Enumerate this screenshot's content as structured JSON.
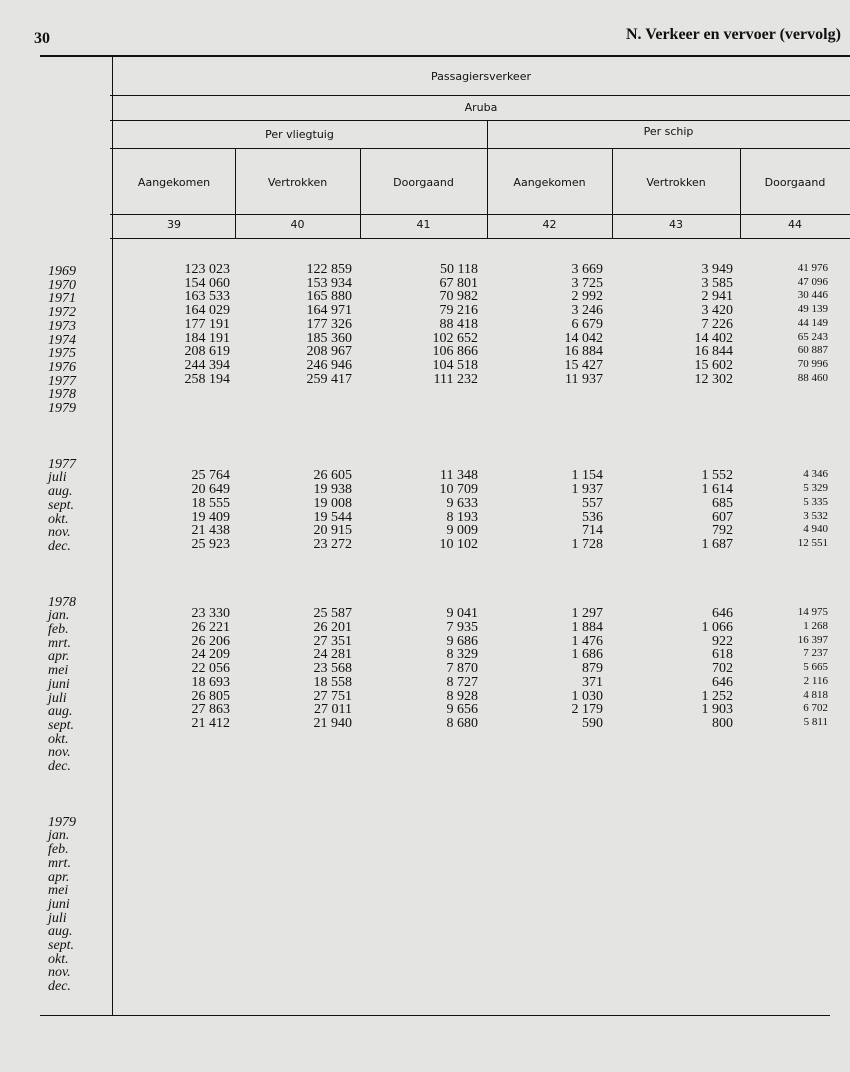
{
  "header": {
    "page": "30",
    "title": "N.  Verkeer en vervoer (vervolg)"
  },
  "table": {
    "headers": {
      "top": "Passagiersverkeer",
      "region": "Aruba",
      "groups": [
        "Per vliegtuig",
        "Per schip"
      ],
      "columns": [
        "Aangekomen",
        "Vertrokken",
        "Doorgaand",
        "Aangekomen",
        "Vertrokken",
        "Doorgaand"
      ],
      "numbers": [
        "39",
        "40",
        "41",
        "42",
        "43",
        "44"
      ]
    },
    "sections": [
      {
        "rows": [
          {
            "label": "1969",
            "cells": [
              "123 023",
              "122 859",
              "50 118",
              "3 669",
              "3 949",
              "41 976"
            ]
          },
          {
            "label": "1970",
            "cells": [
              "154 060",
              "153 934",
              "67 801",
              "3 725",
              "3 585",
              "47 096"
            ]
          },
          {
            "label": "1971",
            "cells": [
              "163 533",
              "165 880",
              "70 982",
              "2 992",
              "2 941",
              "30 446"
            ]
          },
          {
            "label": "1972",
            "cells": [
              "164 029",
              "164 971",
              "79 216",
              "3 246",
              "3 420",
              "49 139"
            ]
          },
          {
            "label": "1973",
            "cells": [
              "177 191",
              "177 326",
              "88 418",
              "6 679",
              "7 226",
              "44 149"
            ]
          },
          {
            "label": "1974",
            "cells": [
              "184 191",
              "185 360",
              "102 652",
              "14 042",
              "14 402",
              "65 243"
            ]
          },
          {
            "label": "1975",
            "cells": [
              "208 619",
              "208 967",
              "106 866",
              "16 884",
              "16 844",
              "60 887"
            ]
          },
          {
            "label": "1976",
            "cells": [
              "244 394",
              "246 946",
              "104 518",
              "15 427",
              "15 602",
              "70 996"
            ]
          },
          {
            "label": "1977",
            "cells": [
              "258 194",
              "259 417",
              "111 232",
              "11 937",
              "12 302",
              "88 460"
            ]
          },
          {
            "label": "1978",
            "cells": []
          },
          {
            "label": "1979",
            "cells": []
          }
        ]
      },
      {
        "label": "1977",
        "rows": [
          {
            "label": "juli",
            "cells": [
              "25 764",
              "26 605",
              "11 348",
              "1 154",
              "1 552",
              "4 346"
            ]
          },
          {
            "label": "aug.",
            "cells": [
              "20 649",
              "19 938",
              "10 709",
              "1 937",
              "1 614",
              "5 329"
            ]
          },
          {
            "label": "sept.",
            "cells": [
              "18 555",
              "19 008",
              "9 633",
              "557",
              "685",
              "5 335"
            ]
          },
          {
            "label": "okt.",
            "cells": [
              "19 409",
              "19 544",
              "8 193",
              "536",
              "607",
              "3 532"
            ]
          },
          {
            "label": "nov.",
            "cells": [
              "21 438",
              "20 915",
              "9 009",
              "714",
              "792",
              "4 940"
            ]
          },
          {
            "label": "dec.",
            "cells": [
              "25 923",
              "23 272",
              "10 102",
              "1 728",
              "1 687",
              "12 551"
            ]
          }
        ]
      },
      {
        "label": "1978",
        "rows": [
          {
            "label": "jan.",
            "cells": [
              "23 330",
              "25 587",
              "9 041",
              "1 297",
              "646",
              "14 975"
            ]
          },
          {
            "label": "feb.",
            "cells": [
              "26 221",
              "26 201",
              "7 935",
              "1 884",
              "1 066",
              "1 268"
            ]
          },
          {
            "label": "mrt.",
            "cells": [
              "26 206",
              "27 351",
              "9 686",
              "1 476",
              "922",
              "16 397"
            ]
          },
          {
            "label": "apr.",
            "cells": [
              "24 209",
              "24 281",
              "8 329",
              "1 686",
              "618",
              "7 237"
            ]
          },
          {
            "label": "mei",
            "cells": [
              "22 056",
              "23 568",
              "7 870",
              "879",
              "702",
              "5 665"
            ]
          },
          {
            "label": "juni",
            "cells": [
              "18 693",
              "18 558",
              "8 727",
              "371",
              "646",
              "2 116"
            ]
          },
          {
            "label": "juli",
            "cells": [
              "26 805",
              "27 751",
              "8 928",
              "1 030",
              "1 252",
              "4 818"
            ]
          },
          {
            "label": "aug.",
            "cells": [
              "27 863",
              "27 011",
              "9 656",
              "2 179",
              "1 903",
              "6 702"
            ]
          },
          {
            "label": "sept.",
            "cells": [
              "21 412",
              "21 940",
              "8 680",
              "590",
              "800",
              "5 811"
            ]
          },
          {
            "label": "okt.",
            "cells": []
          },
          {
            "label": "nov.",
            "cells": []
          },
          {
            "label": "dec.",
            "cells": []
          }
        ]
      },
      {
        "label": "1979",
        "rows": [
          {
            "label": "jan.",
            "cells": []
          },
          {
            "label": "feb.",
            "cells": []
          },
          {
            "label": "mrt.",
            "cells": []
          },
          {
            "label": "apr.",
            "cells": []
          },
          {
            "label": "mei",
            "cells": []
          },
          {
            "label": "juni",
            "cells": []
          },
          {
            "label": "juli",
            "cells": []
          },
          {
            "label": "aug.",
            "cells": []
          },
          {
            "label": "sept.",
            "cells": []
          },
          {
            "label": "okt.",
            "cells": []
          },
          {
            "label": "nov.",
            "cells": []
          },
          {
            "label": "dec.",
            "cells": []
          }
        ]
      }
    ]
  }
}
